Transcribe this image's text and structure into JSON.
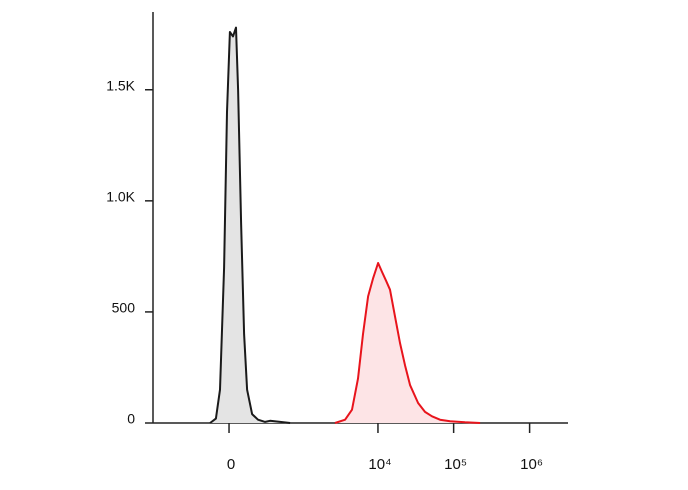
{
  "chart_data": {
    "type": "histogram-line",
    "xscale": "biexponential",
    "xlim": [
      -1000,
      3200000
    ],
    "ylim": [
      0,
      1850
    ],
    "xticks": [
      0,
      {
        "value": 10000,
        "label": "10⁴"
      },
      {
        "value": 100000,
        "label": "10⁵"
      },
      {
        "value": 1000000,
        "label": "10⁶"
      }
    ],
    "yticks": [
      0,
      500,
      {
        "value": 1000,
        "label": "1.0K"
      },
      {
        "value": 1500,
        "label": "1.5K"
      }
    ],
    "series": [
      {
        "color": "#1a1a1a",
        "fill": "#e4e4e4",
        "x": [
          -86,
          -54,
          -35,
          -18,
          -7,
          3,
          14,
          26,
          35,
          49,
          64,
          81,
          112,
          156,
          220,
          273,
          410,
          594
        ],
        "values": [
          0,
          20,
          150,
          700,
          1400,
          1760,
          1740,
          1780,
          1500,
          900,
          400,
          150,
          40,
          15,
          5,
          10,
          5,
          0
        ]
      },
      {
        "color": "#e8141c",
        "fill": "#fde4e6",
        "x": [
          2640,
          3620,
          4500,
          5420,
          6320,
          7380,
          8600,
          10030,
          11320,
          12810,
          14470,
          16850,
          19630,
          22860,
          26640,
          33960,
          41980,
          51940,
          66160,
          89700,
          141300,
          222900
        ],
        "values": [
          0,
          15,
          60,
          200,
          400,
          570,
          650,
          720,
          680,
          640,
          600,
          480,
          360,
          260,
          170,
          90,
          50,
          30,
          15,
          8,
          3,
          0
        ]
      }
    ]
  }
}
